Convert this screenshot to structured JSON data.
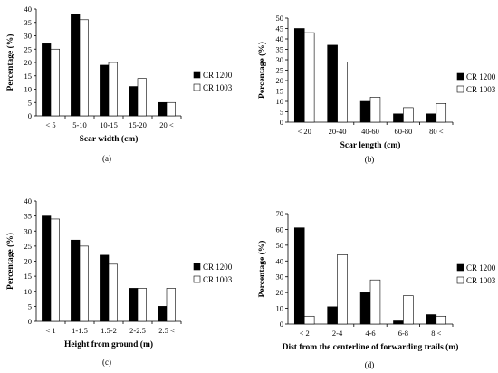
{
  "chart_data": [
    {
      "type": "bar",
      "panel": "(a)",
      "xlabel": "Scar width (cm)",
      "ylabel": "Percentage (%)",
      "categories": [
        "< 5",
        "5-10",
        "10-15",
        "15-20",
        "20 <"
      ],
      "ylim": [
        0,
        40
      ],
      "yticks": [
        0,
        5,
        10,
        15,
        20,
        25,
        30,
        35,
        40
      ],
      "series": [
        {
          "name": "CR 1200",
          "color": "#000000",
          "values": [
            27,
            38,
            19,
            11,
            5
          ]
        },
        {
          "name": "CR 1003",
          "color": "#ffffff",
          "values": [
            25,
            36,
            20,
            14,
            5
          ]
        }
      ]
    },
    {
      "type": "bar",
      "panel": "(b)",
      "xlabel": "Scar length (cm)",
      "ylabel": "Percentage (%)",
      "categories": [
        "< 20",
        "20-40",
        "40-60",
        "60-80",
        "80 <"
      ],
      "ylim": [
        0,
        50
      ],
      "yticks": [
        0,
        5,
        10,
        15,
        20,
        25,
        30,
        35,
        40,
        45,
        50
      ],
      "series": [
        {
          "name": "CR 1200",
          "color": "#000000",
          "values": [
            45,
            37,
            10,
            4,
            4
          ]
        },
        {
          "name": "CR 1003",
          "color": "#ffffff",
          "values": [
            43,
            29,
            12,
            7,
            9
          ]
        }
      ]
    },
    {
      "type": "bar",
      "panel": "(c)",
      "xlabel": "Height from ground (m)",
      "ylabel": "Percentage (%)",
      "categories": [
        "< 1",
        "1-1.5",
        "1.5-2",
        "2-2.5",
        "2.5 <"
      ],
      "ylim": [
        0,
        40
      ],
      "yticks": [
        0,
        5,
        10,
        15,
        20,
        25,
        30,
        35,
        40
      ],
      "series": [
        {
          "name": "CR 1200",
          "color": "#000000",
          "values": [
            35,
            27,
            22,
            11,
            5
          ]
        },
        {
          "name": "CR 1003",
          "color": "#ffffff",
          "values": [
            34,
            25,
            19,
            11,
            11
          ]
        }
      ]
    },
    {
      "type": "bar",
      "panel": "(d)",
      "xlabel": "Dist from the centerline of forwarding trails (m)",
      "ylabel": "Percentage (%)",
      "categories": [
        "< 2",
        "2-4",
        "4-6",
        "6-8",
        "8 <"
      ],
      "ylim": [
        0,
        70
      ],
      "yticks": [
        0,
        10,
        20,
        30,
        40,
        50,
        60,
        70
      ],
      "series": [
        {
          "name": "CR 1200",
          "color": "#000000",
          "values": [
            61,
            11,
            20,
            2,
            6
          ]
        },
        {
          "name": "CR 1003",
          "color": "#ffffff",
          "values": [
            5,
            44,
            28,
            18,
            5
          ]
        }
      ]
    }
  ]
}
